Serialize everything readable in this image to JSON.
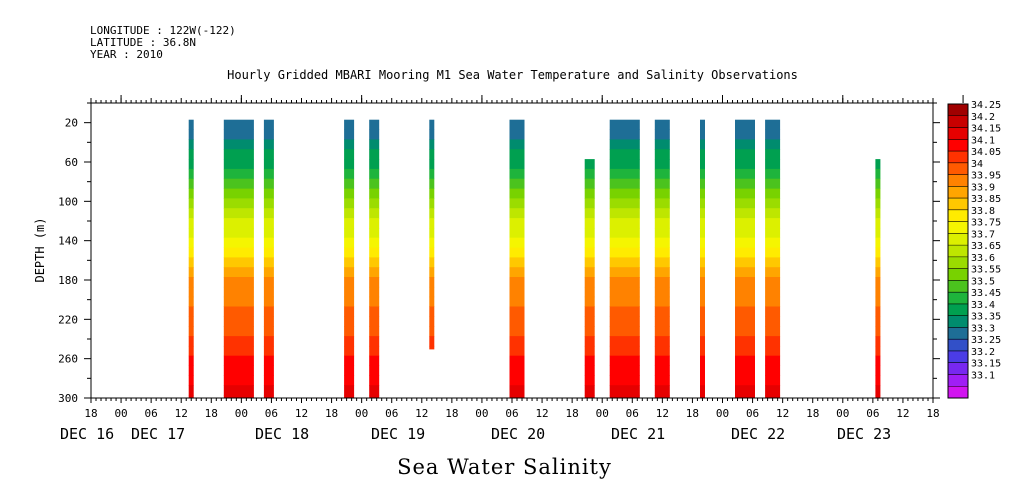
{
  "header": {
    "longitude": "LONGITUDE : 122W(-122)",
    "latitude": "LATITUDE : 36.8N",
    "year": "YEAR : 2010"
  },
  "chart_data": {
    "type": "heatmap",
    "title": "Hourly Gridded MBARI Mooring M1 Sea Water Temperature and Salinity Observations",
    "xlabel": "Sea Water Salinity",
    "ylabel": "DEPTH (m)",
    "ylim": [
      300,
      0
    ],
    "xlim_hours": "Dec 16 18:00 - Dec 23 18:00",
    "y_ticks": [
      20,
      60,
      100,
      140,
      180,
      220,
      260,
      300
    ],
    "x_hour_ticks": [
      "18",
      "00",
      "06",
      "12",
      "18",
      "00",
      "06",
      "12",
      "18",
      "00",
      "06",
      "12",
      "18",
      "00",
      "06",
      "12",
      "18",
      "00",
      "06",
      "12",
      "18",
      "00",
      "06",
      "12",
      "18",
      "00",
      "06",
      "12",
      "18"
    ],
    "x_day_labels": [
      {
        "label": "DEC 16"
      },
      {
        "label": "DEC 17"
      },
      {
        "label": "DEC 18"
      },
      {
        "label": "DEC 19"
      },
      {
        "label": "DEC 20"
      },
      {
        "label": "DEC 21"
      },
      {
        "label": "DEC 22"
      },
      {
        "label": "DEC 23"
      }
    ],
    "colorbar_levels": [
      "34.25",
      "34.2",
      "34.15",
      "34.1",
      "34.05",
      "34",
      "33.95",
      "33.9",
      "33.85",
      "33.8",
      "33.75",
      "33.7",
      "33.65",
      "33.6",
      "33.55",
      "33.5",
      "33.45",
      "33.4",
      "33.35",
      "33.3",
      "33.25",
      "33.2",
      "33.15",
      "33.1"
    ],
    "colorbar_colors": [
      "#a00000",
      "#c80000",
      "#e60000",
      "#ff0000",
      "#ff3200",
      "#ff5a00",
      "#ff8200",
      "#ffa500",
      "#ffc800",
      "#ffeb00",
      "#f5f500",
      "#dcf000",
      "#bee600",
      "#9bdc00",
      "#78d200",
      "#4bc31e",
      "#1eb43c",
      "#00a050",
      "#008c6e",
      "#1e6e96",
      "#3250c8",
      "#4b3ce6",
      "#7828f0",
      "#a01ef5",
      "#d214f0"
    ],
    "profile_columns": [
      {
        "start": "Dec 17 14:00",
        "end": "Dec 17 14:00",
        "depth_top": 20,
        "depth_bottom": 300
      },
      {
        "start": "Dec 17 21:00",
        "end": "Dec 18 02:00",
        "depth_top": 20,
        "depth_bottom": 300
      },
      {
        "start": "Dec 18 05:00",
        "end": "Dec 18 06:00",
        "depth_top": 20,
        "depth_bottom": 300
      },
      {
        "start": "Dec 18 21:00",
        "end": "Dec 18 22:00",
        "depth_top": 20,
        "depth_bottom": 300
      },
      {
        "start": "Dec 19 02:00",
        "end": "Dec 19 03:00",
        "depth_top": 20,
        "depth_bottom": 300
      },
      {
        "start": "Dec 19 14:00",
        "end": "Dec 19 14:00",
        "depth_top": 20,
        "depth_bottom": 250
      },
      {
        "start": "Dec 20 06:00",
        "end": "Dec 20 08:00",
        "depth_top": 20,
        "depth_bottom": 300
      },
      {
        "start": "Dec 20 21:00",
        "end": "Dec 20 22:00",
        "depth_top": 60,
        "depth_bottom": 300
      },
      {
        "start": "Dec 21 02:00",
        "end": "Dec 21 07:00",
        "depth_top": 20,
        "depth_bottom": 300
      },
      {
        "start": "Dec 21 11:00",
        "end": "Dec 21 13:00",
        "depth_top": 20,
        "depth_bottom": 300
      },
      {
        "start": "Dec 21 20:00",
        "end": "Dec 21 20:00",
        "depth_top": 20,
        "depth_bottom": 300
      },
      {
        "start": "Dec 22 03:00",
        "end": "Dec 22 06:00",
        "depth_top": 20,
        "depth_bottom": 300
      },
      {
        "start": "Dec 22 09:00",
        "end": "Dec 22 11:00",
        "depth_top": 20,
        "depth_bottom": 300
      },
      {
        "start": "Dec 23 07:00",
        "end": "Dec 23 07:00",
        "depth_top": 60,
        "depth_bottom": 300
      }
    ]
  }
}
